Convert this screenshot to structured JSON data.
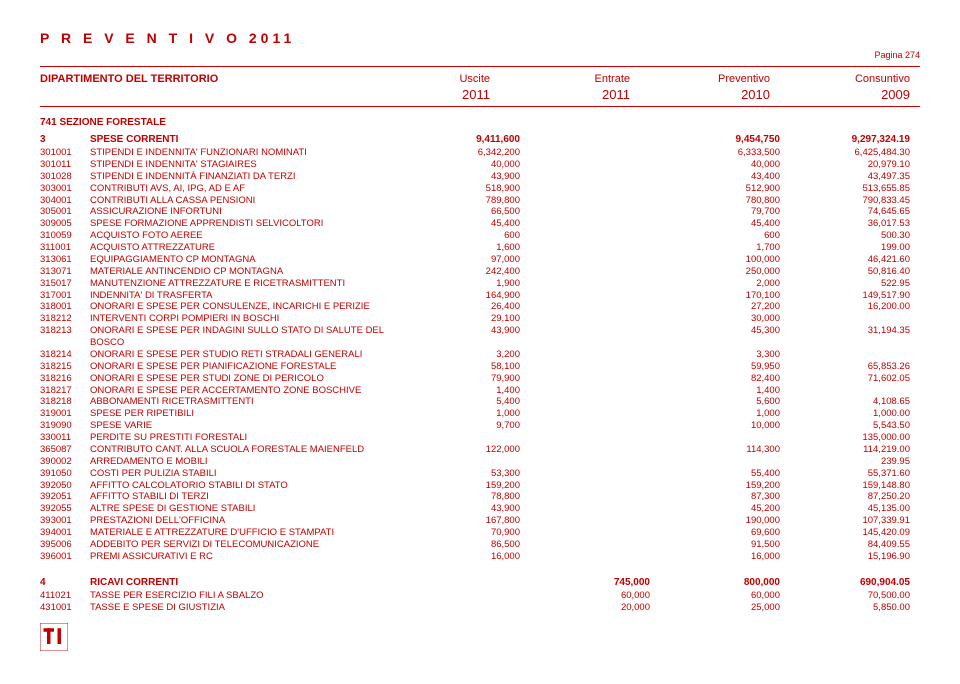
{
  "title": "P R E V E N T I V O   2011",
  "page_label": "Pagina 274",
  "header": {
    "dept": "DIPARTIMENTO DEL TERRITORIO",
    "cols": [
      "Uscite",
      "Entrate",
      "Preventivo",
      "Consuntivo"
    ],
    "years": [
      "2011",
      "2011",
      "2010",
      "2009"
    ]
  },
  "section": "741   SEZIONE FORESTALE",
  "group3": {
    "code": "3",
    "desc": "SPESE CORRENTI",
    "v1": "9,411,600",
    "v3": "9,454,750",
    "v4": "9,297,324.19"
  },
  "rows3": [
    {
      "code": "301001",
      "desc": "STIPENDI E INDENNITA' FUNZIONARI NOMINATI",
      "v1": "6,342,200",
      "v3": "6,333,500",
      "v4": "6,425,484.30"
    },
    {
      "code": "301011",
      "desc": "STIPENDI E INDENNITA' STAGIAIRES",
      "v1": "40,000",
      "v3": "40,000",
      "v4": "20,979.10"
    },
    {
      "code": "301028",
      "desc": "STIPENDI E INDENNITÀ FINANZIATI DA TERZI",
      "v1": "43,900",
      "v3": "43,400",
      "v4": "43,497.35"
    },
    {
      "code": "303001",
      "desc": "CONTRIBUTI AVS, AI, IPG, AD E AF",
      "v1": "518,900",
      "v3": "512,900",
      "v4": "513,655.85"
    },
    {
      "code": "304001",
      "desc": "CONTRIBUTI ALLA CASSA PENSIONI",
      "v1": "789,800",
      "v3": "780,800",
      "v4": "790,833.45"
    },
    {
      "code": "305001",
      "desc": "ASSICURAZIONE INFORTUNI",
      "v1": "66,500",
      "v3": "79,700",
      "v4": "74,645.65"
    },
    {
      "code": "309005",
      "desc": "SPESE FORMAZIONE APPRENDISTI SELVICOLTORI",
      "v1": "45,400",
      "v3": "45,400",
      "v4": "36,017.53"
    },
    {
      "code": "310059",
      "desc": "ACQUISTO FOTO AEREE",
      "v1": "600",
      "v3": "600",
      "v4": "500.30"
    },
    {
      "code": "311001",
      "desc": "ACQUISTO ATTREZZATURE",
      "v1": "1,600",
      "v3": "1,700",
      "v4": "199.00"
    },
    {
      "code": "313061",
      "desc": "EQUIPAGGIAMENTO CP MONTAGNA",
      "v1": "97,000",
      "v3": "100,000",
      "v4": "46,421.60"
    },
    {
      "code": "313071",
      "desc": "MATERIALE ANTINCENDIO CP MONTAGNA",
      "v1": "242,400",
      "v3": "250,000",
      "v4": "50,816.40"
    },
    {
      "code": "315017",
      "desc": "MANUTENZIONE ATTREZZATURE E RICETRASMITTENTI",
      "v1": "1,900",
      "v3": "2,000",
      "v4": "522.95"
    },
    {
      "code": "317001",
      "desc": "INDENNITA' DI TRASFERTA",
      "v1": "164,900",
      "v3": "170,100",
      "v4": "149,517.90"
    },
    {
      "code": "318001",
      "desc": "ONORARI E SPESE PER CONSULENZE, INCARICHI E PERIZIE",
      "v1": "26,400",
      "v3": "27,200",
      "v4": "16,200.00"
    },
    {
      "code": "318212",
      "desc": "INTERVENTI CORPI POMPIERI IN BOSCHI",
      "v1": "29,100",
      "v3": "30,000",
      "v4": ""
    },
    {
      "code": "318213",
      "desc": "ONORARI E SPESE PER INDAGINI SULLO STATO DI SALUTE DEL BOSCO",
      "v1": "43,900",
      "v3": "45,300",
      "v4": "31,194.35"
    },
    {
      "code": "318214",
      "desc": "ONORARI E SPESE PER STUDIO RETI STRADALI GENERALI",
      "v1": "3,200",
      "v3": "3,300",
      "v4": ""
    },
    {
      "code": "318215",
      "desc": "ONORARI E SPESE PER PIANIFICAZIONE FORESTALE",
      "v1": "58,100",
      "v3": "59,950",
      "v4": "65,853.26"
    },
    {
      "code": "318216",
      "desc": "ONORARI E SPESE PER STUDI ZONE DI PERICOLO",
      "v1": "79,900",
      "v3": "82,400",
      "v4": "71,602.05"
    },
    {
      "code": "318217",
      "desc": "ONORARI E SPESE PER ACCERTAMENTO ZONE BOSCHIVE",
      "v1": "1,400",
      "v3": "1,400",
      "v4": ""
    },
    {
      "code": "318218",
      "desc": "ABBONAMENTI RICETRASMITTENTI",
      "v1": "5,400",
      "v3": "5,600",
      "v4": "4,108.65"
    },
    {
      "code": "319001",
      "desc": "SPESE PER RIPETIBILI",
      "v1": "1,000",
      "v3": "1,000",
      "v4": "1,000.00"
    },
    {
      "code": "319090",
      "desc": "SPESE VARIE",
      "v1": "9,700",
      "v3": "10,000",
      "v4": "5,543.50"
    },
    {
      "code": "330011",
      "desc": "PERDITE SU PRESTITI FORESTALI",
      "v1": "",
      "v3": "",
      "v4": "135,000.00"
    },
    {
      "code": "365087",
      "desc": "CONTRIBUTO CANT. ALLA SCUOLA FORESTALE MAIENFELD",
      "v1": "122,000",
      "v3": "114,300",
      "v4": "114,219.00"
    },
    {
      "code": "390002",
      "desc": "ARREDAMENTO E MOBILI",
      "v1": "",
      "v3": "",
      "v4": "239.95"
    },
    {
      "code": "391050",
      "desc": "COSTI PER PULIZIA STABILI",
      "v1": "53,300",
      "v3": "55,400",
      "v4": "55,371.60"
    },
    {
      "code": "392050",
      "desc": "AFFITTO CALCOLATORIO STABILI DI STATO",
      "v1": "159,200",
      "v3": "159,200",
      "v4": "159,148.80"
    },
    {
      "code": "392051",
      "desc": "AFFITTO STABILI DI TERZI",
      "v1": "78,800",
      "v3": "87,300",
      "v4": "87,250.20"
    },
    {
      "code": "392055",
      "desc": "ALTRE SPESE DI GESTIONE STABILI",
      "v1": "43,900",
      "v3": "45,200",
      "v4": "45,135.00"
    },
    {
      "code": "393001",
      "desc": "PRESTAZIONI DELL'OFFICINA",
      "v1": "167,800",
      "v3": "190,000",
      "v4": "107,339.91"
    },
    {
      "code": "394001",
      "desc": "MATERIALE E ATTREZZATURE D'UFFICIO E STAMPATI",
      "v1": "70,900",
      "v3": "69,600",
      "v4": "145,420.09"
    },
    {
      "code": "395006",
      "desc": "ADDEBITO PER SERVIZI DI TELECOMUNICAZIONE",
      "v1": "86,500",
      "v3": "91,500",
      "v4": "84,409.55"
    },
    {
      "code": "396001",
      "desc": "PREMI ASSICURATIVI E RC",
      "v1": "16,000",
      "v3": "16,000",
      "v4": "15,196.90"
    }
  ],
  "group4": {
    "code": "4",
    "desc": "RICAVI CORRENTI",
    "v2": "745,000",
    "v3": "800,000",
    "v4": "690,904.05"
  },
  "rows4": [
    {
      "code": "411021",
      "desc": "TASSE PER ESERCIZIO FILI A SBALZO",
      "v2": "60,000",
      "v3": "60,000",
      "v4": "70,500.00"
    },
    {
      "code": "431001",
      "desc": "TASSE E SPESE DI GIUSTIZIA",
      "v2": "20,000",
      "v3": "25,000",
      "v4": "5,850.00"
    }
  ],
  "colors": {
    "text": "#c00000",
    "bg": "#ffffff"
  }
}
